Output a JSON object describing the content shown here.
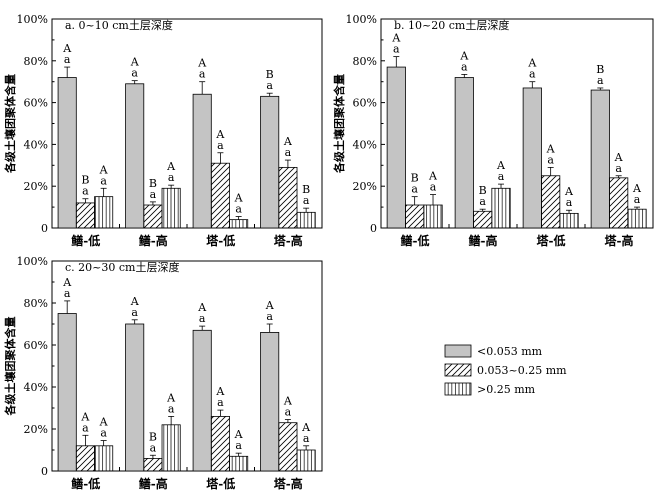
{
  "series_styles": {
    "fine": {
      "fill": "#c4c4c4",
      "pattern": "solid"
    },
    "middle": {
      "fill": "#ffffff",
      "pattern": "diagonal-hatch"
    },
    "coarse": {
      "fill": "#ffffff",
      "pattern": "vertical-lines"
    }
  },
  "legend": {
    "placement": "right-middle",
    "items": [
      {
        "key": "fine",
        "label": "<0.053 mm"
      },
      {
        "key": "middle",
        "label": "0.053~0.25 mm"
      },
      {
        "key": "coarse",
        "label": ">0.25 mm"
      }
    ]
  },
  "chart_data": [
    {
      "type": "bar",
      "title": "a. 0~10 cm土层深度",
      "ylabel": "各级土壤团聚体含量",
      "xlabel": "",
      "ylim": [
        0,
        100
      ],
      "ytick_labels": [
        "0",
        "20%",
        "40%",
        "60%",
        "80%",
        "100%"
      ],
      "categories": [
        "鳝-低",
        "鳝-高",
        "塔-低",
        "塔-高"
      ],
      "series": [
        {
          "key": "fine",
          "name": "<0.053 mm",
          "values": [
            72,
            69,
            64,
            63
          ],
          "errors": [
            5,
            1.5,
            6,
            1.5
          ],
          "sig_upper": [
            "A",
            "A",
            "A",
            "B"
          ],
          "sig_lower": [
            "a",
            "a",
            "a",
            "a"
          ]
        },
        {
          "key": "middle",
          "name": "0.053~0.25 mm",
          "values": [
            12,
            11,
            31,
            29
          ],
          "errors": [
            2,
            1.5,
            5,
            3.5
          ],
          "sig_upper": [
            "B",
            "B",
            "A",
            "A"
          ],
          "sig_lower": [
            "a",
            "a",
            "a",
            "a"
          ]
        },
        {
          "key": "coarse",
          "name": ">0.25 mm",
          "values": [
            15,
            19,
            4,
            7.5
          ],
          "errors": [
            4,
            1.5,
            1.5,
            2
          ],
          "sig_upper": [
            "A",
            "A",
            "A",
            "B"
          ],
          "sig_lower": [
            "a",
            "a",
            "a",
            "a"
          ]
        }
      ]
    },
    {
      "type": "bar",
      "title": "b. 10~20 cm土层深度",
      "ylabel": "各级土壤团聚体含量",
      "xlabel": "",
      "ylim": [
        0,
        100
      ],
      "ytick_labels": [
        "0",
        "20%",
        "40%",
        "60%",
        "80%",
        "100%"
      ],
      "categories": [
        "鳝-低",
        "鳝-高",
        "塔-低",
        "塔-高"
      ],
      "series": [
        {
          "key": "fine",
          "name": "<0.053 mm",
          "values": [
            77,
            72,
            67,
            66
          ],
          "errors": [
            5,
            1.5,
            3,
            1
          ],
          "sig_upper": [
            "A",
            "A",
            "A",
            "B"
          ],
          "sig_lower": [
            "a",
            "a",
            "a",
            "a"
          ]
        },
        {
          "key": "middle",
          "name": "0.053~0.25 mm",
          "values": [
            11,
            8,
            25,
            24
          ],
          "errors": [
            4,
            1,
            4,
            1
          ],
          "sig_upper": [
            "B",
            "B",
            "A",
            "A"
          ],
          "sig_lower": [
            "a",
            "a",
            "a",
            "a"
          ]
        },
        {
          "key": "coarse",
          "name": ">0.25 mm",
          "values": [
            11,
            19,
            7,
            9
          ],
          "errors": [
            5,
            2,
            1.5,
            1
          ],
          "sig_upper": [
            "A",
            "A",
            "A",
            "A"
          ],
          "sig_lower": [
            "a",
            "a",
            "a",
            "a"
          ]
        }
      ]
    },
    {
      "type": "bar",
      "title": "c. 20~30 cm土层深度",
      "ylabel": "各级土壤团聚体含量",
      "xlabel": "",
      "ylim": [
        0,
        100
      ],
      "ytick_labels": [
        "0",
        "20%",
        "40%",
        "60%",
        "80%",
        "100%"
      ],
      "categories": [
        "鳝-低",
        "鳝-高",
        "塔-低",
        "塔-高"
      ],
      "series": [
        {
          "key": "fine",
          "name": "<0.053 mm",
          "values": [
            75,
            70,
            67,
            66
          ],
          "errors": [
            6,
            2,
            2,
            4
          ],
          "sig_upper": [
            "A",
            "A",
            "A",
            "A"
          ],
          "sig_lower": [
            "a",
            "a",
            "a",
            "a"
          ]
        },
        {
          "key": "middle",
          "name": "0.053~0.25 mm",
          "values": [
            12,
            6,
            26,
            23
          ],
          "errors": [
            5,
            1.5,
            3,
            1.5
          ],
          "sig_upper": [
            "A",
            "B",
            "A",
            "A"
          ],
          "sig_lower": [
            "a",
            "a",
            "a",
            "a"
          ]
        },
        {
          "key": "coarse",
          "name": ">0.25 mm",
          "values": [
            12,
            22,
            7,
            10
          ],
          "errors": [
            2.5,
            4,
            1.5,
            2
          ],
          "sig_upper": [
            "A",
            "A",
            "A",
            "A"
          ],
          "sig_lower": [
            "a",
            "a",
            "a",
            "a"
          ]
        }
      ]
    }
  ]
}
